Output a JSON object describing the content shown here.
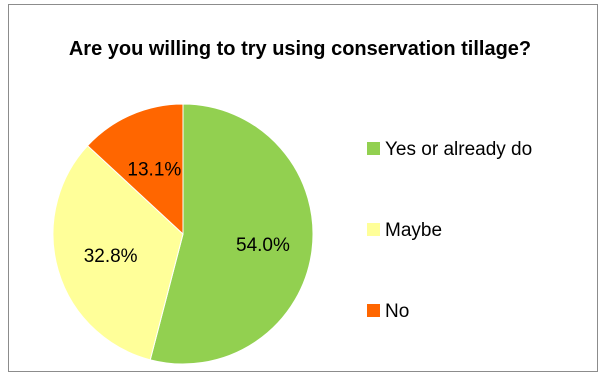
{
  "chart_data": {
    "type": "pie",
    "title": "Are you willing to try using conservation tillage?",
    "legend_position": "right",
    "slices": [
      {
        "label": "Yes or already do",
        "value": 54.0,
        "display": "54.0%",
        "color": "#92d050"
      },
      {
        "label": "Maybe",
        "value": 32.8,
        "display": "32.8%",
        "color": "#ffff99"
      },
      {
        "label": "No",
        "value": 13.1,
        "display": "13.1%",
        "color": "#ff6600"
      }
    ]
  }
}
